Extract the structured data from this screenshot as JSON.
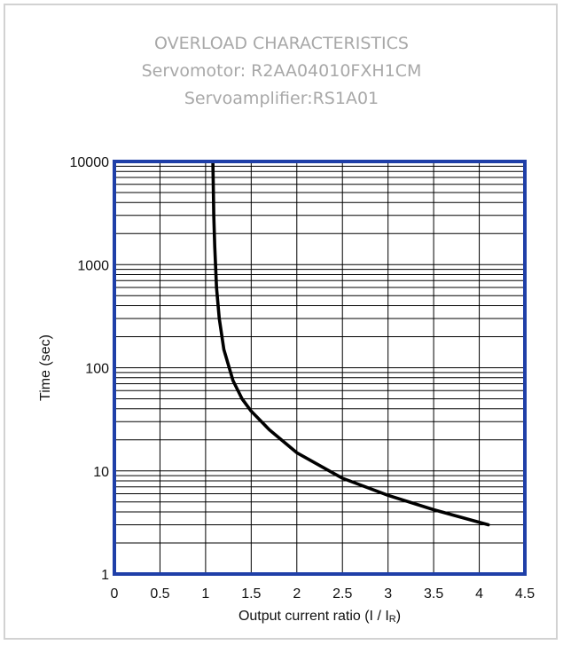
{
  "titles": {
    "line1": "OVERLOAD CHARACTERISTICS",
    "line2": "Servomotor: R2AA04010FXH1CM",
    "line3": "Servoamplifier:RS1A01"
  },
  "colors": {
    "plot_border": "#1f3fa8",
    "curve": "#000000",
    "grid": "#000000",
    "title_text": "#a8a8a8"
  },
  "chart_data": {
    "type": "line",
    "title": "OVERLOAD CHARACTERISTICS",
    "xlabel_main": "Output current ratio (I / I",
    "xlabel_sub": "R",
    "xlabel_end": ")",
    "ylabel": "Time (sec)",
    "xlim": [
      0,
      4.5
    ],
    "ylim": [
      1,
      10000
    ],
    "yscale": "log",
    "grid": true,
    "x_ticks": [
      "0",
      "0.5",
      "1",
      "1.5",
      "2",
      "2.5",
      "3",
      "3.5",
      "4",
      "4.5"
    ],
    "y_ticks": [
      "1",
      "10",
      "100",
      "1000",
      "10000"
    ],
    "series": [
      {
        "x": [
          1.08,
          1.09,
          1.1,
          1.12,
          1.15,
          1.2,
          1.3,
          1.4,
          1.5,
          1.7,
          2.0,
          2.5,
          3.0,
          3.5,
          4.1
        ],
        "y": [
          10000,
          3000,
          1500,
          600,
          300,
          150,
          75,
          50,
          38,
          25,
          15,
          8.5,
          5.8,
          4.2,
          3.0
        ]
      }
    ]
  }
}
